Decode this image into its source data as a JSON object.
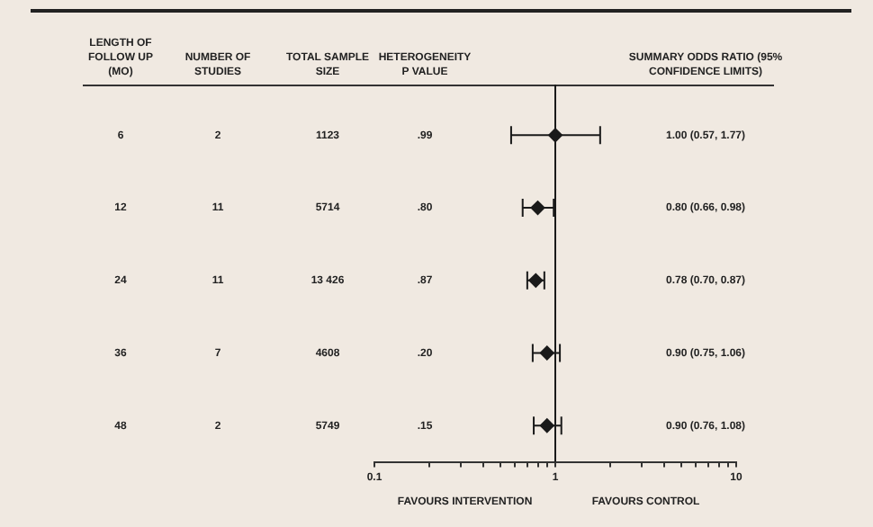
{
  "chart_data": {
    "type": "scatter",
    "orientation": "horizontal",
    "categories": [
      null,
      null,
      null,
      null,
      null
    ],
    "values": [
      1.0,
      0.8,
      0.78,
      0.9,
      0.9
    ],
    "errors": [
      [
        0.57,
        1.77
      ],
      [
        0.66,
        0.98
      ],
      [
        0.7,
        0.87
      ],
      [
        0.75,
        1.06
      ],
      [
        0.76,
        1.08
      ]
    ],
    "color": "#1a1a1a",
    "marker": "diamond",
    "log": "x",
    "xlim": [
      0.1,
      10
    ],
    "xticks": [
      0.1,
      {
        "value": 0.2,
        "label": null
      },
      {
        "value": 0.3,
        "label": null
      },
      {
        "value": 0.4,
        "label": null
      },
      {
        "value": 0.5,
        "label": null
      },
      {
        "value": 0.6,
        "label": null
      },
      {
        "value": 0.7,
        "label": null
      },
      {
        "value": 0.8,
        "label": null
      },
      {
        "value": 0.9,
        "label": null
      },
      1,
      {
        "value": 2,
        "label": null
      },
      {
        "value": 3,
        "label": null
      },
      {
        "value": 4,
        "label": null
      },
      {
        "value": 5,
        "label": null
      },
      {
        "value": 6,
        "label": null
      },
      {
        "value": 7,
        "label": null
      },
      {
        "value": 8,
        "label": null
      },
      {
        "value": 9,
        "label": null
      },
      10
    ],
    "ref_lines": [
      {
        "axis": "x",
        "value": 1,
        "color": "#1a1a1a"
      }
    ],
    "annotations": [
      "LENGTH OF FOLLOW UP (MO)",
      "NUMBER OF STUDIES",
      "TOTAL SAMPLE SIZE",
      "HETEROGENEITY P VALUE",
      "SUMMARY ODDS RATIO (95% CONFIDENCE LIMITS)",
      "6",
      "2",
      "1123",
      ".99",
      "1.00 (0.57, 1.77)",
      "12",
      "11",
      "5714",
      ".80",
      "0.80 (0.66, 0.98)",
      "24",
      "11",
      "13 426",
      ".87",
      "0.78 (0.70, 0.87)",
      "36",
      "7",
      "4608",
      ".20",
      "0.90 (0.75, 1.06)",
      "48",
      "2",
      "5749",
      ".15",
      "0.90 (0.76, 1.08)",
      "FAVOURS INTERVENTION",
      "FAVOURS CONTROL"
    ]
  }
}
